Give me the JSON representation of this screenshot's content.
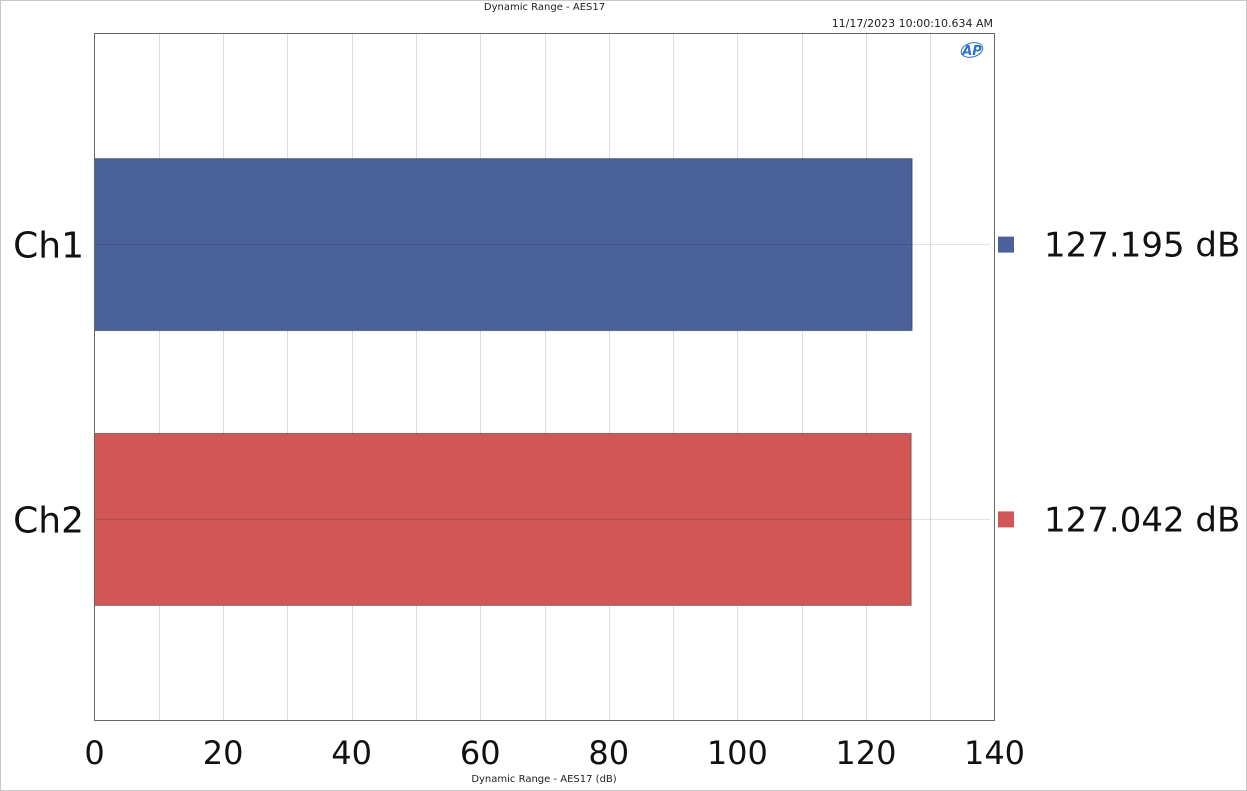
{
  "chart_data": {
    "type": "bar",
    "orientation": "horizontal",
    "title": "Dynamic Range - AES17",
    "timestamp": "11/17/2023 10:00:10.634 AM",
    "xlabel": "Dynamic Range - AES17 (dB)",
    "ylabel": "",
    "xlim": [
      0,
      140
    ],
    "x_ticks": [
      "0",
      "20",
      "40",
      "60",
      "80",
      "100",
      "120",
      "140"
    ],
    "grid": true,
    "logo": "AP",
    "categories": [
      "Ch1",
      "Ch2"
    ],
    "values": [
      127.195,
      127.042
    ],
    "colors": [
      "#4a6299",
      "#d15656"
    ],
    "value_labels": [
      "127.195 dB",
      "127.042 dB"
    ],
    "legend_position": "right"
  }
}
